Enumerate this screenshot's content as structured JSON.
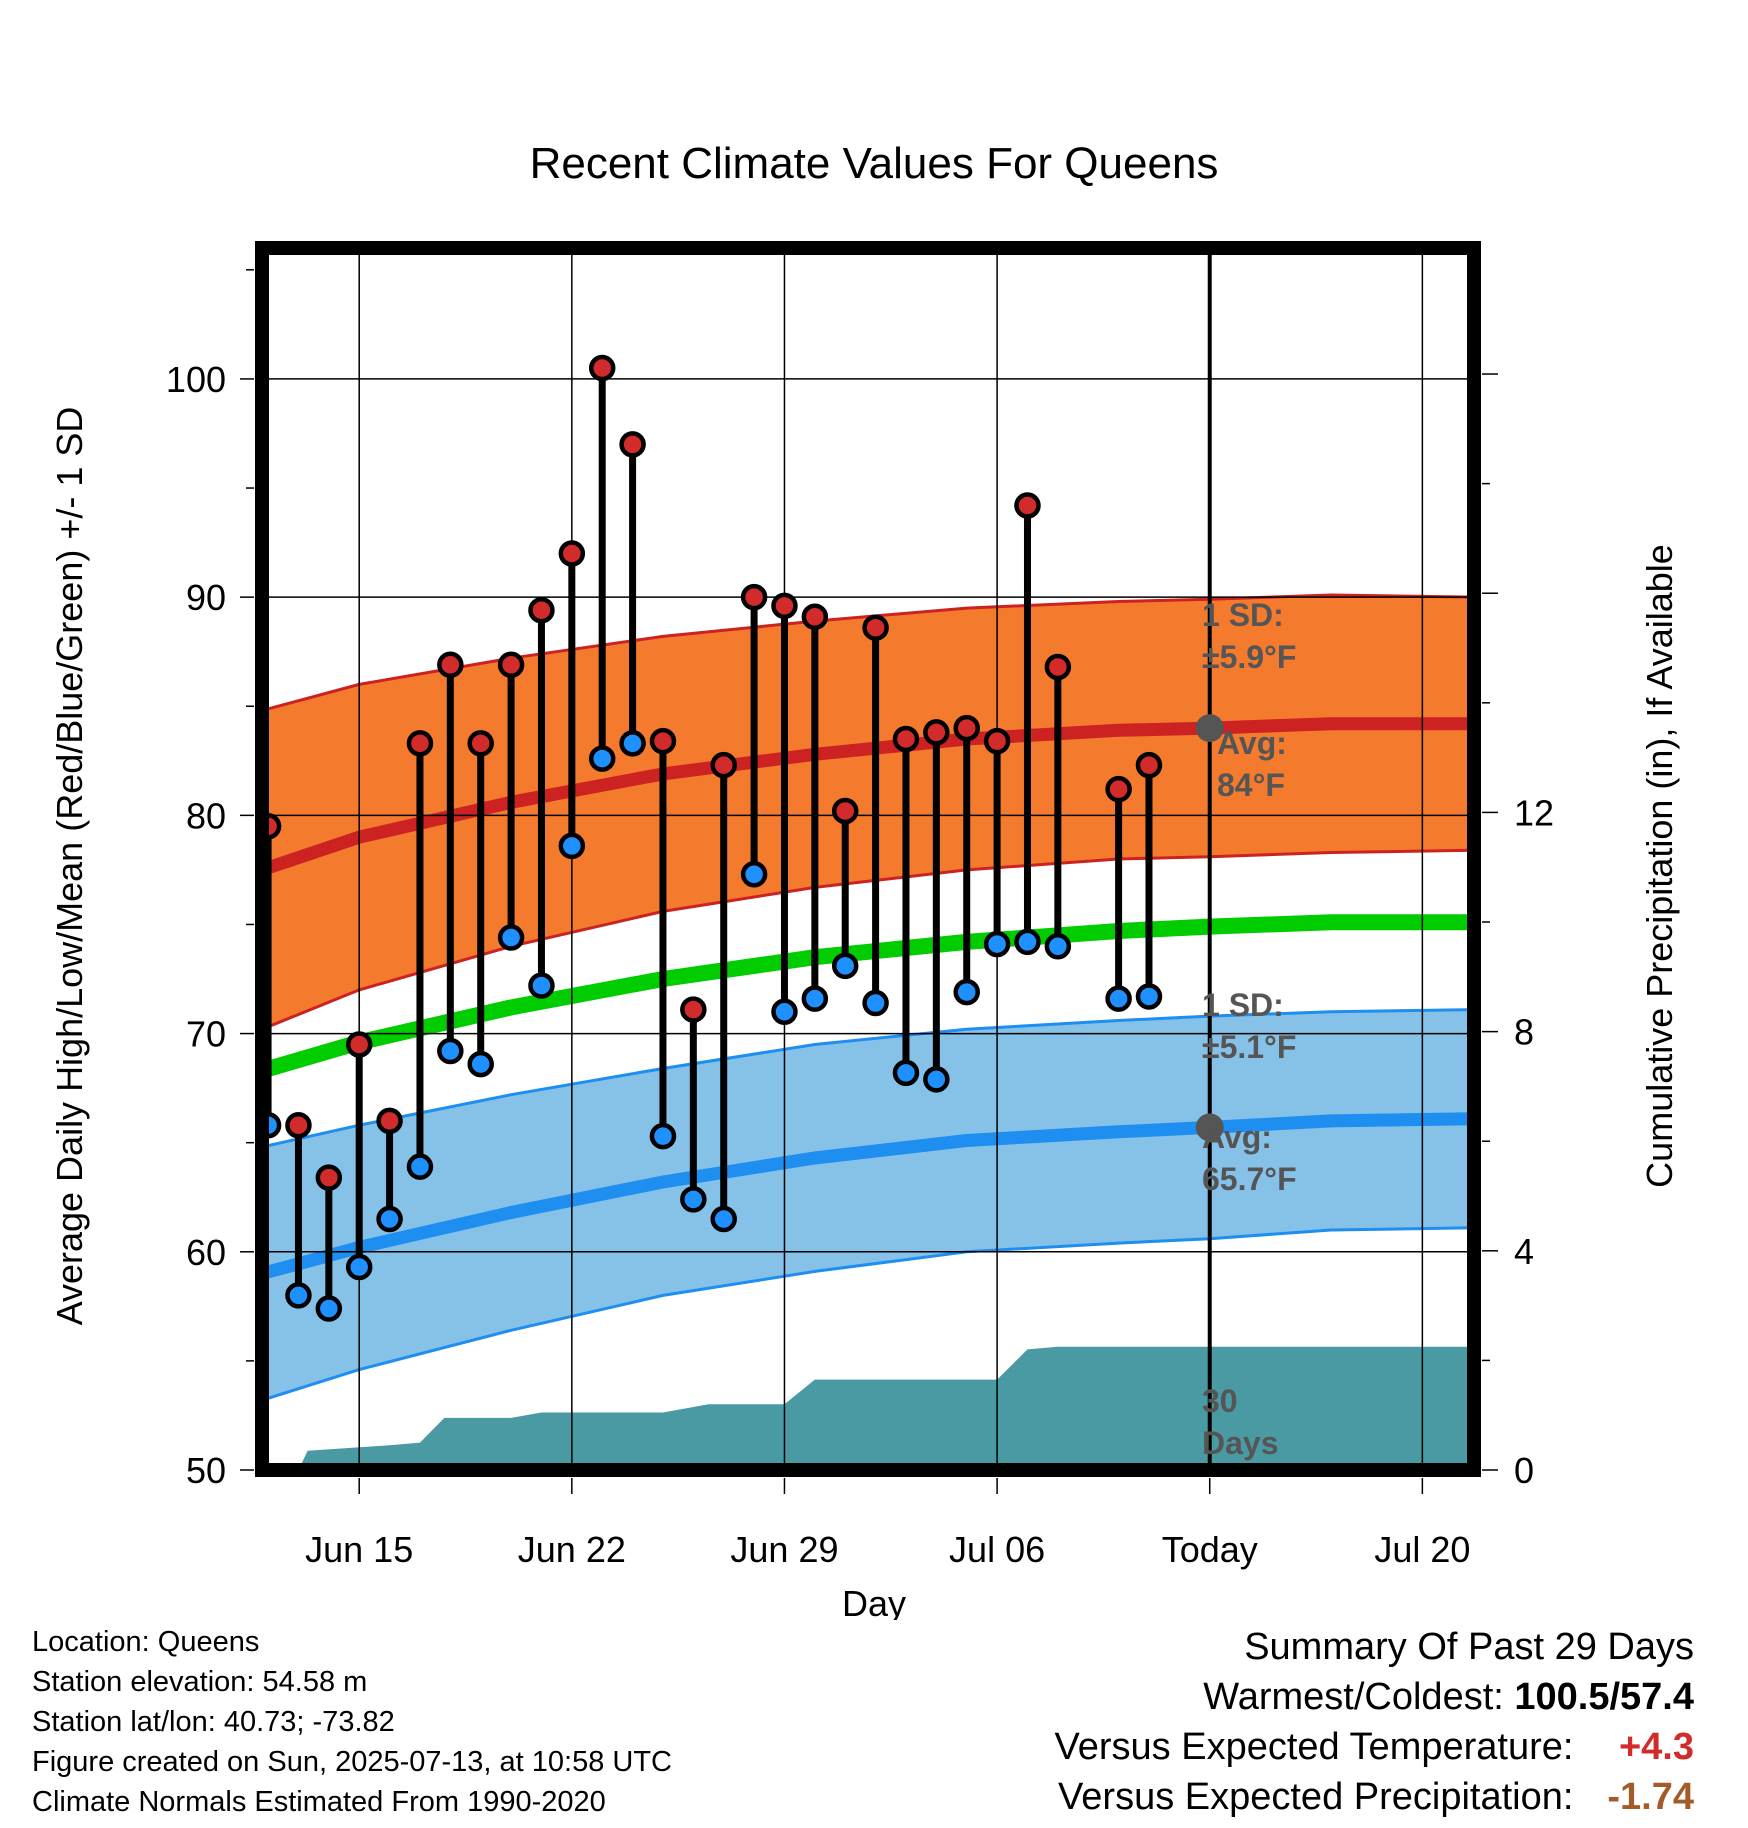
{
  "chart_data": {
    "type": "line",
    "title": "Recent Climate Values For Queens",
    "xlabel": "Day",
    "ylabel": "Average Daily High/Low/Mean (Red/Blue/Green) +/- 1 SD",
    "y2label": "Cumulative Precipitation (in), If Available",
    "ylim": [
      50,
      106
    ],
    "y2lim": [
      0,
      22.3
    ],
    "x_ticks": [
      {
        "day": 15,
        "label": "Jun 15"
      },
      {
        "day": 22,
        "label": "Jun 22"
      },
      {
        "day": 29,
        "label": "Jun 29"
      },
      {
        "day": 36,
        "label": "Jul 06"
      },
      {
        "day": 43,
        "label": "Today"
      },
      {
        "day": 50,
        "label": "Jul 20"
      }
    ],
    "xlim": [
      11.8,
      51.7
    ],
    "y_ticks": [
      50,
      60,
      70,
      80,
      90,
      100
    ],
    "y2_ticks": [
      0,
      4,
      8,
      12
    ],
    "today_day": 43,
    "daily": [
      {
        "day": 12,
        "high": 79.5,
        "low": 65.8
      },
      {
        "day": 13,
        "high": 65.8,
        "low": 58.0
      },
      {
        "day": 14,
        "high": 63.4,
        "low": 57.4
      },
      {
        "day": 15,
        "high": 69.5,
        "low": 59.3
      },
      {
        "day": 16,
        "high": 66.0,
        "low": 61.5
      },
      {
        "day": 17,
        "high": 83.3,
        "low": 63.9
      },
      {
        "day": 18,
        "high": 86.9,
        "low": 69.2
      },
      {
        "day": 19,
        "high": 83.3,
        "low": 68.6
      },
      {
        "day": 20,
        "high": 86.9,
        "low": 74.4
      },
      {
        "day": 21,
        "high": 89.4,
        "low": 72.2
      },
      {
        "day": 22,
        "high": 92.0,
        "low": 78.6
      },
      {
        "day": 23,
        "high": 100.5,
        "low": 82.6
      },
      {
        "day": 24,
        "high": 97.0,
        "low": 83.3
      },
      {
        "day": 25,
        "high": 83.4,
        "low": 65.3
      },
      {
        "day": 26,
        "high": 71.1,
        "low": 62.4
      },
      {
        "day": 27,
        "high": 82.3,
        "low": 61.5
      },
      {
        "day": 28,
        "high": 90.0,
        "low": 77.3
      },
      {
        "day": 29,
        "high": 89.6,
        "low": 71.0
      },
      {
        "day": 30,
        "high": 89.1,
        "low": 71.6
      },
      {
        "day": 31,
        "high": 80.2,
        "low": 73.1
      },
      {
        "day": 32,
        "high": 88.6,
        "low": 71.4
      },
      {
        "day": 33,
        "high": 83.5,
        "low": 68.2
      },
      {
        "day": 34,
        "high": 83.8,
        "low": 67.9
      },
      {
        "day": 35,
        "high": 84.0,
        "low": 71.9
      },
      {
        "day": 36,
        "high": 83.4,
        "low": 74.1
      },
      {
        "day": 37,
        "high": 94.2,
        "low": 74.2
      },
      {
        "day": 38,
        "high": 86.8,
        "low": 74.0
      },
      {
        "day": 40,
        "high": 81.2,
        "low": 71.6
      },
      {
        "day": 41,
        "high": 82.3,
        "low": 71.7
      }
    ],
    "normal_high": [
      {
        "day": 11.8,
        "mean": 77.5,
        "sd": 7.3
      },
      {
        "day": 15,
        "mean": 79.0,
        "sd": 7.0
      },
      {
        "day": 20,
        "mean": 80.6,
        "sd": 6.6
      },
      {
        "day": 25,
        "mean": 81.9,
        "sd": 6.3
      },
      {
        "day": 30,
        "mean": 82.8,
        "sd": 6.1
      },
      {
        "day": 35,
        "mean": 83.5,
        "sd": 6.0
      },
      {
        "day": 40,
        "mean": 83.9,
        "sd": 5.9
      },
      {
        "day": 43,
        "mean": 84.0,
        "sd": 5.9
      },
      {
        "day": 47,
        "mean": 84.2,
        "sd": 5.9
      },
      {
        "day": 51.7,
        "mean": 84.2,
        "sd": 5.8
      }
    ],
    "normal_low": [
      {
        "day": 11.8,
        "mean": 59.0,
        "sd": 5.8
      },
      {
        "day": 15,
        "mean": 60.2,
        "sd": 5.6
      },
      {
        "day": 20,
        "mean": 61.8,
        "sd": 5.4
      },
      {
        "day": 25,
        "mean": 63.2,
        "sd": 5.2
      },
      {
        "day": 30,
        "mean": 64.3,
        "sd": 5.2
      },
      {
        "day": 35,
        "mean": 65.1,
        "sd": 5.1
      },
      {
        "day": 40,
        "mean": 65.5,
        "sd": 5.1
      },
      {
        "day": 43,
        "mean": 65.7,
        "sd": 5.1
      },
      {
        "day": 47,
        "mean": 66.0,
        "sd": 5.0
      },
      {
        "day": 51.7,
        "mean": 66.1,
        "sd": 5.0
      }
    ],
    "normal_mean": [
      {
        "day": 11.8,
        "value": 68.3
      },
      {
        "day": 15,
        "value": 69.6
      },
      {
        "day": 20,
        "value": 71.2
      },
      {
        "day": 25,
        "value": 72.5
      },
      {
        "day": 30,
        "value": 73.5
      },
      {
        "day": 35,
        "value": 74.2
      },
      {
        "day": 40,
        "value": 74.7
      },
      {
        "day": 43,
        "value": 74.9
      },
      {
        "day": 47,
        "value": 75.1
      },
      {
        "day": 51.7,
        "value": 75.1
      }
    ],
    "cumulative_precip": [
      {
        "day": 11.8,
        "value": 0.0
      },
      {
        "day": 13,
        "value": 0.0
      },
      {
        "day": 13.3,
        "value": 0.35
      },
      {
        "day": 16,
        "value": 0.45
      },
      {
        "day": 17,
        "value": 0.5
      },
      {
        "day": 17.8,
        "value": 0.95
      },
      {
        "day": 20,
        "value": 0.95
      },
      {
        "day": 21,
        "value": 1.05
      },
      {
        "day": 25,
        "value": 1.05
      },
      {
        "day": 26.5,
        "value": 1.2
      },
      {
        "day": 28.2,
        "value": 1.2
      },
      {
        "day": 29,
        "value": 1.2
      },
      {
        "day": 30,
        "value": 1.65
      },
      {
        "day": 36,
        "value": 1.65
      },
      {
        "day": 37,
        "value": 2.2
      },
      {
        "day": 38,
        "value": 2.25
      },
      {
        "day": 51.7,
        "value": 2.25
      }
    ],
    "labels": {
      "high_sd_line1": "1 SD:",
      "high_sd_line2": "±5.9°F",
      "high_avg_line1": "Avg:",
      "high_avg_line2": "84°F",
      "low_sd_line1": "1 SD:",
      "low_sd_line2": "±5.1°F",
      "low_avg_line1": "Avg:",
      "low_avg_line2": "65.7°F",
      "precip_line1": "30",
      "precip_line2": "Days"
    },
    "colors": {
      "high_band": "#f47a2e",
      "high_line": "#cc2222",
      "low_band": "#86c2e8",
      "low_line": "#1e8ef0",
      "mean_line": "#00cc00",
      "precip_fill": "#4a9aa3",
      "high_dot": "#d22b2b",
      "low_dot": "#1e90ff"
    }
  },
  "info": {
    "location": "Location: Queens",
    "elevation": "Station elevation: 54.58 m",
    "latlon": "Station lat/lon: 40.73; -73.82",
    "created": "Figure created on Sun, 2025-07-13, at 10:58 UTC",
    "normals": "Climate Normals Estimated From 1990-2020"
  },
  "summary": {
    "title": "Summary Of Past 29 Days",
    "warm_cold_label": "Warmest/Coldest:",
    "warm_cold_value": "100.5/57.4",
    "temp_label": "Versus Expected Temperature:",
    "temp_value": "+4.3",
    "precip_label": "Versus Expected Precipitation:",
    "precip_value": "-1.74"
  }
}
